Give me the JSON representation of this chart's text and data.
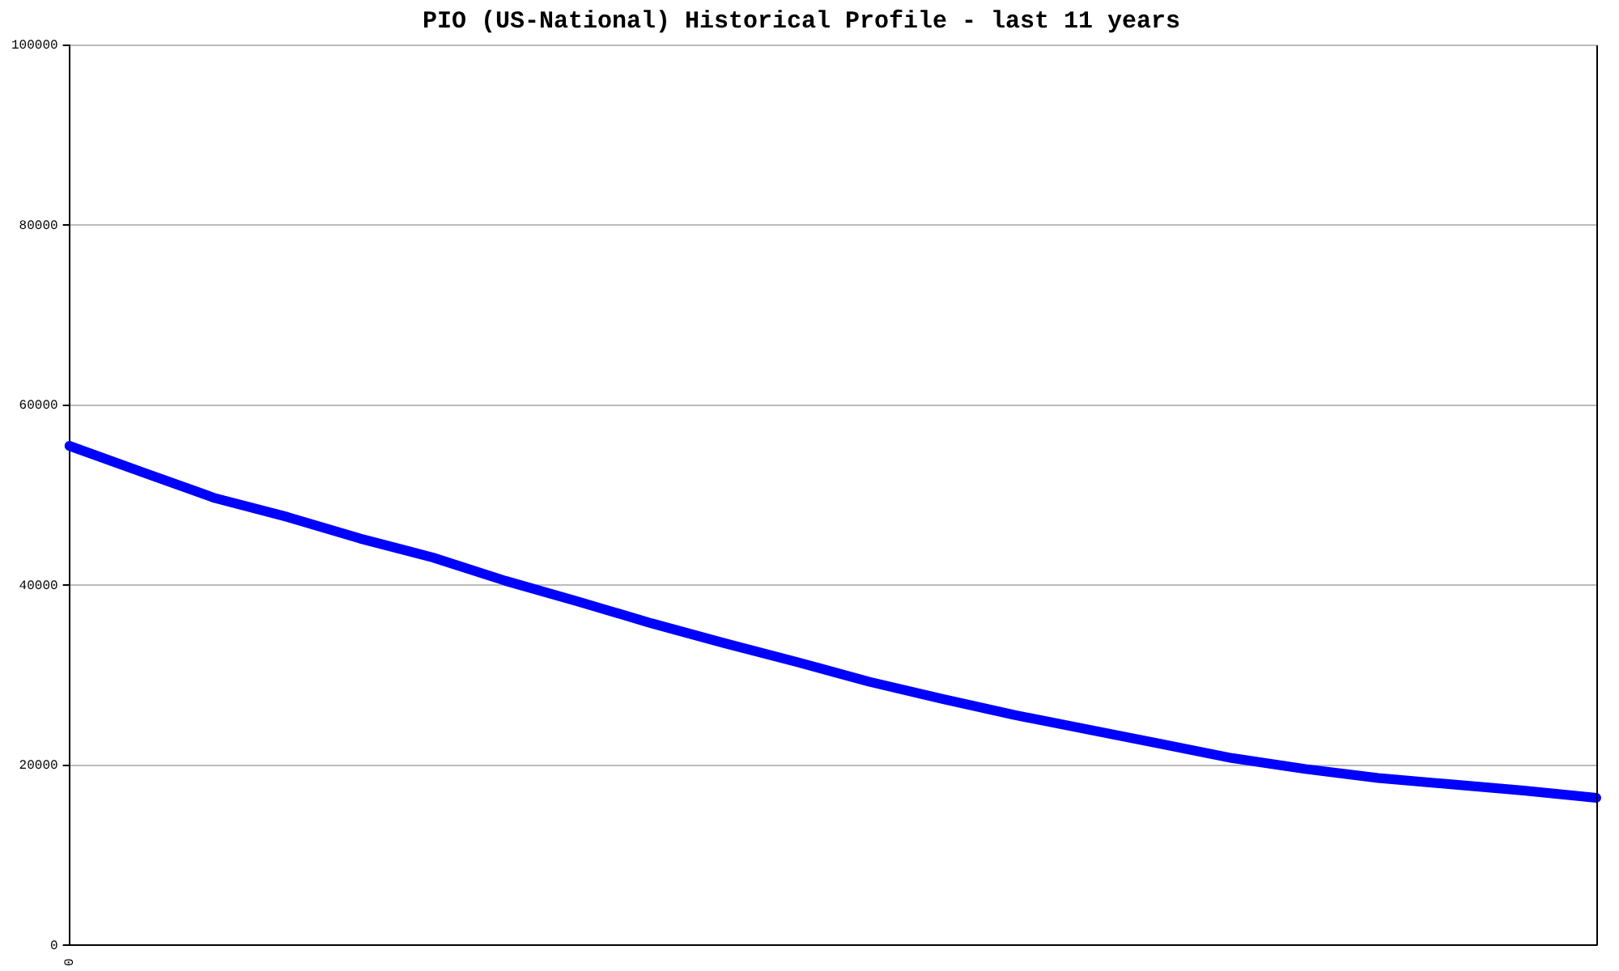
{
  "chart_data": {
    "type": "line",
    "title": "PIO (US-National) Historical Profile - last 11 years",
    "categories": [
      "0",
      null,
      null,
      null,
      null,
      null,
      null,
      null,
      null,
      null,
      null,
      null,
      null,
      null,
      null,
      null,
      null,
      null,
      null,
      null,
      null,
      null
    ],
    "series": [
      {
        "color": "#0000ff",
        "values": [
          55500,
          52600,
          49700,
          47600,
          45200,
          43100,
          40500,
          38200,
          35800,
          33600,
          31500,
          29300,
          27400,
          25600,
          24000,
          22400,
          20800,
          19600,
          18600,
          17900,
          17200,
          16400
        ]
      }
    ],
    "ylim": [
      0,
      100000
    ],
    "yticks": [
      0,
      20000,
      40000,
      60000,
      80000,
      100000
    ],
    "grid": "y",
    "legend": false,
    "marker": "none",
    "line_style": "solid"
  }
}
